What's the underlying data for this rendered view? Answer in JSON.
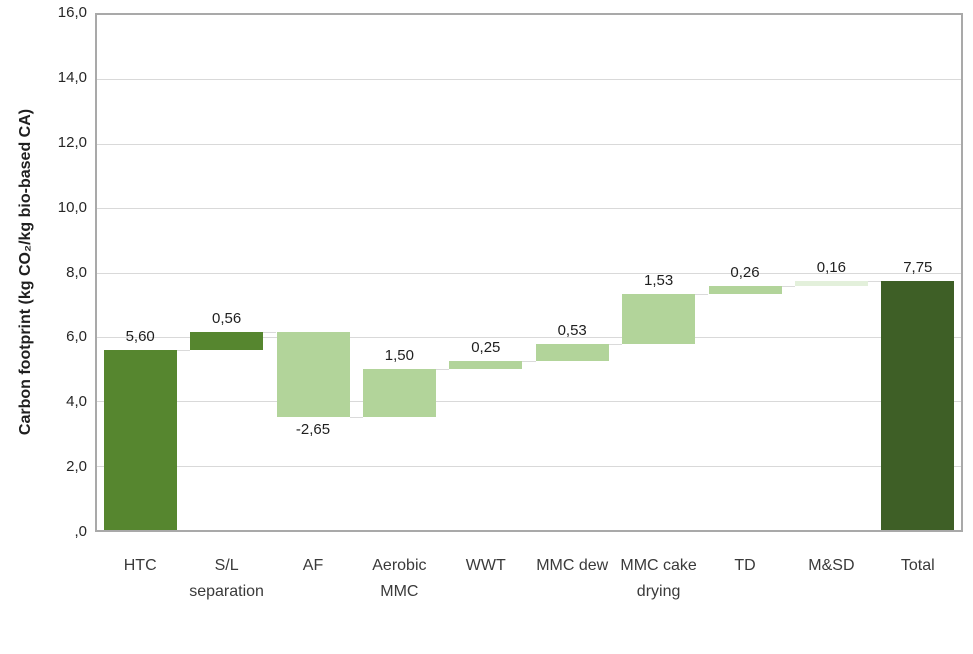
{
  "chart_data": {
    "type": "bar",
    "subtype": "waterfall",
    "title": "",
    "xlabel": "",
    "ylabel": "Carbon footprint (kg CO₂/kg bio-based CA)",
    "ylim": [
      0,
      16
    ],
    "grid": true,
    "legend": null,
    "y_ticks": [
      {
        "value": 16,
        "label": "16,0"
      },
      {
        "value": 14,
        "label": "14,0"
      },
      {
        "value": 12,
        "label": "12,0"
      },
      {
        "value": 10,
        "label": "10,0"
      },
      {
        "value": 8,
        "label": "8,0"
      },
      {
        "value": 6,
        "label": "6,0"
      },
      {
        "value": 4,
        "label": "4,0"
      },
      {
        "value": 2,
        "label": "2,0"
      },
      {
        "value": 0,
        "label": ",0"
      }
    ],
    "bars": [
      {
        "category": "HTC",
        "value": 5.6,
        "label": "5,60",
        "color": "#56862f",
        "is_total": false
      },
      {
        "category": "S/L separation",
        "value": 0.56,
        "label": "0,56",
        "color": "#56862f",
        "is_total": false
      },
      {
        "category": "AF",
        "value": -2.65,
        "label": "-2,65",
        "color": "#b2d49a",
        "is_total": false
      },
      {
        "category": "Aerobic MMC",
        "value": 1.5,
        "label": "1,50",
        "color": "#b2d49a",
        "is_total": false
      },
      {
        "category": "WWT",
        "value": 0.25,
        "label": "0,25",
        "color": "#b2d49a",
        "is_total": false
      },
      {
        "category": "MMC dew",
        "value": 0.53,
        "label": "0,53",
        "color": "#b2d49a",
        "is_total": false
      },
      {
        "category": "MMC cake drying",
        "value": 1.53,
        "label": "1,53",
        "color": "#b2d49a",
        "is_total": false
      },
      {
        "category": "TD",
        "value": 0.26,
        "label": "0,26",
        "color": "#b2d49a",
        "is_total": false
      },
      {
        "category": "M&SD",
        "value": 0.16,
        "label": "0,16",
        "color": "#e3f0db",
        "is_total": false
      },
      {
        "category": "Total",
        "value": 7.75,
        "label": "7,75",
        "color": "#3e5f26",
        "is_total": true
      }
    ],
    "colors": {
      "dark_green": "#56862f",
      "light_green": "#b2d49a",
      "pale_green": "#e3f0db",
      "total_green": "#3e5f26",
      "gridline": "#d9d9d9",
      "connector": "#dadada",
      "plot_border": "#a9a9a9",
      "text": "#1f1f1f"
    }
  }
}
